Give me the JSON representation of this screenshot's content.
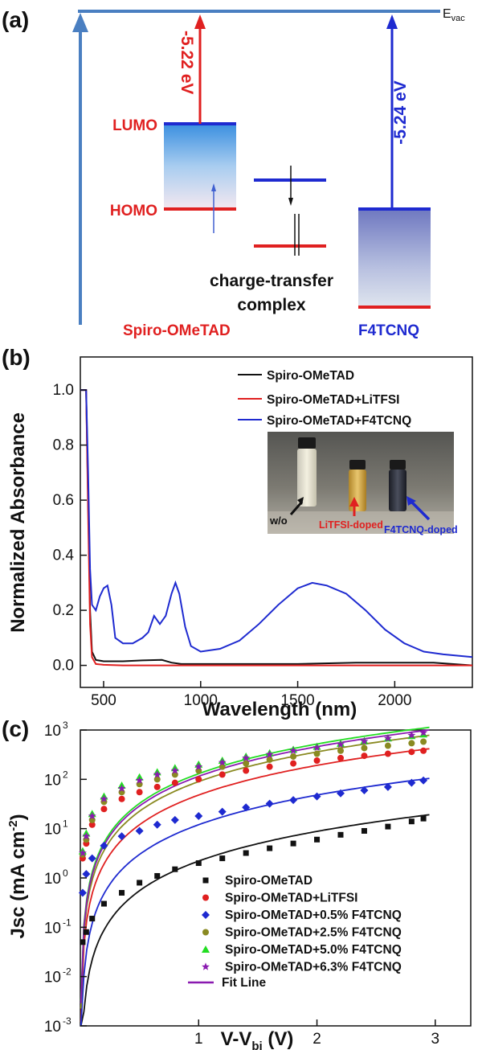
{
  "panel_a": {
    "label": "(a)",
    "evac": "E",
    "evac_sub": "vac",
    "lumo": "LUMO",
    "homo": "HOMO",
    "spiro_energy": "-5.22 eV",
    "f4_energy": "-5.24 eV",
    "ct_line1": "charge-transfer",
    "ct_line2": "complex",
    "spiro_name": "Spiro-OMeTAD",
    "f4_name": "F4TCNQ",
    "colors": {
      "red": "#e02020",
      "blue": "#1e2ad0",
      "evac_line": "#4a7fc1"
    }
  },
  "panel_b": {
    "label": "(b)",
    "inset": {
      "w_o": "w/o",
      "litfsi": "LiTFSI-doped",
      "f4": "F4TCNQ-doped"
    },
    "chart_data": {
      "type": "line",
      "title": "",
      "xlabel": "Wavelength (nm)",
      "ylabel": "Normalized Absorbance",
      "xlim": [
        380,
        2400
      ],
      "ylim": [
        -0.08,
        1.12
      ],
      "xticks": [
        500,
        1000,
        1500,
        2000
      ],
      "yticks": [
        0.0,
        0.2,
        0.4,
        0.6,
        0.8,
        1.0
      ],
      "xtick_labels": [
        "500",
        "1000",
        "1500",
        "2000"
      ],
      "ytick_labels": [
        "0.0",
        "0.2",
        "0.4",
        "0.6",
        "0.8",
        "1.0"
      ],
      "legend_placement": "top-right",
      "series": [
        {
          "name": "Spiro-OMeTAD",
          "color": "#111111",
          "x": [
            380,
            400,
            410,
            420,
            430,
            440,
            460,
            500,
            600,
            700,
            800,
            850,
            900,
            1000,
            1200,
            1500,
            1800,
            2000,
            2200,
            2400
          ],
          "y": [
            1.0,
            1.0,
            1.0,
            0.6,
            0.2,
            0.05,
            0.02,
            0.015,
            0.015,
            0.018,
            0.02,
            0.01,
            0.005,
            0.005,
            0.005,
            0.005,
            0.01,
            0.01,
            0.01,
            0.0
          ]
        },
        {
          "name": "Spiro-OMeTAD+LiTFSI",
          "color": "#e02020",
          "x": [
            380,
            400,
            410,
            420,
            430,
            440,
            460,
            500,
            600,
            800,
            1000,
            1500,
            2000,
            2400
          ],
          "y": [
            1.0,
            1.0,
            1.0,
            0.55,
            0.15,
            0.03,
            0.005,
            0.002,
            0.0,
            0.0,
            0.0,
            0.0,
            0.0,
            0.0
          ]
        },
        {
          "name": "Spiro-OMeTAD+F4TCNQ",
          "color": "#1e2ad0",
          "x": [
            380,
            400,
            410,
            420,
            430,
            440,
            460,
            480,
            500,
            520,
            540,
            560,
            600,
            650,
            700,
            730,
            760,
            790,
            820,
            850,
            870,
            890,
            920,
            950,
            1000,
            1100,
            1200,
            1300,
            1400,
            1500,
            1575,
            1650,
            1750,
            1850,
            1950,
            2050,
            2150,
            2250,
            2400
          ],
          "y": [
            1.0,
            1.0,
            1.0,
            0.7,
            0.35,
            0.22,
            0.2,
            0.25,
            0.28,
            0.29,
            0.22,
            0.1,
            0.08,
            0.08,
            0.1,
            0.12,
            0.18,
            0.15,
            0.18,
            0.26,
            0.3,
            0.26,
            0.14,
            0.07,
            0.05,
            0.06,
            0.09,
            0.15,
            0.22,
            0.28,
            0.3,
            0.29,
            0.26,
            0.2,
            0.13,
            0.08,
            0.05,
            0.04,
            0.03
          ]
        }
      ]
    }
  },
  "panel_c": {
    "label": "(c)",
    "chart_data": {
      "type": "scatter",
      "title": "",
      "xlabel": "V-V",
      "xlabel_sub": "bi",
      "xlabel_unit": " (V)",
      "ylabel": "Jsc (mA cm",
      "ylabel_sup": "-2",
      "ylabel_end": ")",
      "xlim": [
        0,
        3.3
      ],
      "ylim_log": [
        -3,
        3
      ],
      "yscale": "log",
      "xticks": [
        1,
        2,
        3
      ],
      "xtick_labels": [
        "1",
        "2",
        "3"
      ],
      "yticks_exp": [
        -3,
        -2,
        -1,
        0,
        1,
        2,
        3
      ],
      "ytick_base": "10",
      "ytick_exps": [
        "-3",
        "-2",
        "-1",
        "0",
        "1",
        "2",
        "3"
      ],
      "legend_placement": "bottom-right",
      "fit_label": "Fit Line",
      "fit_color": "#8a1ab0",
      "x": [
        0.02,
        0.05,
        0.1,
        0.2,
        0.35,
        0.5,
        0.65,
        0.8,
        1.0,
        1.2,
        1.4,
        1.6,
        1.8,
        2.0,
        2.2,
        2.4,
        2.6,
        2.8,
        2.9
      ],
      "series": [
        {
          "name": "Spiro-OMeTAD",
          "color": "#111111",
          "marker": "square",
          "values": [
            0.05,
            0.08,
            0.15,
            0.3,
            0.5,
            0.8,
            1.1,
            1.5,
            2.0,
            2.5,
            3.2,
            4.0,
            5.0,
            6.0,
            7.5,
            9.0,
            11.0,
            14.0,
            16.0
          ],
          "fit_a": 2.2,
          "fit_p": 2.0
        },
        {
          "name": "Spiro-OMeTAD+LiTFSI",
          "color": "#e02020",
          "marker": "circle",
          "values": [
            2.5,
            5,
            12,
            25,
            40,
            55,
            70,
            85,
            100,
            125,
            150,
            180,
            210,
            240,
            270,
            300,
            330,
            360,
            380
          ],
          "fit_a": 48,
          "fit_p": 2.0
        },
        {
          "name": "Spiro-OMeTAD+0.5% F4TCNQ",
          "color": "#1e2ad0",
          "marker": "diamond",
          "values": [
            0.5,
            1.2,
            2.5,
            4.5,
            7,
            9,
            12,
            15,
            18,
            22,
            27,
            32,
            38,
            45,
            52,
            60,
            70,
            85,
            95
          ],
          "fit_a": 12,
          "fit_p": 2.0
        },
        {
          "name": "Spiro-OMeTAD+2.5% F4TCNQ",
          "color": "#8a8a22",
          "marker": "circle",
          "values": [
            3,
            6,
            15,
            35,
            55,
            80,
            100,
            125,
            150,
            180,
            210,
            250,
            290,
            330,
            380,
            430,
            480,
            540,
            580
          ],
          "fit_a": 90,
          "fit_p": 2.0
        },
        {
          "name": "Spiro-OMeTAD+5.0% F4TCNQ",
          "color": "#22dd22",
          "marker": "triangle",
          "values": [
            3.5,
            8,
            20,
            45,
            75,
            110,
            140,
            170,
            200,
            240,
            290,
            340,
            400,
            460,
            530,
            600,
            680,
            760,
            820
          ],
          "fit_a": 130,
          "fit_p": 2.0
        },
        {
          "name": "Spiro-OMeTAD+6.3% F4TCNQ",
          "color": "#8a1ab0",
          "marker": "star",
          "values": [
            3.2,
            7,
            18,
            40,
            65,
            95,
            125,
            150,
            180,
            220,
            270,
            320,
            380,
            440,
            510,
            590,
            680,
            780,
            880
          ],
          "fit_a": 115,
          "fit_p": 2.0
        }
      ]
    }
  }
}
